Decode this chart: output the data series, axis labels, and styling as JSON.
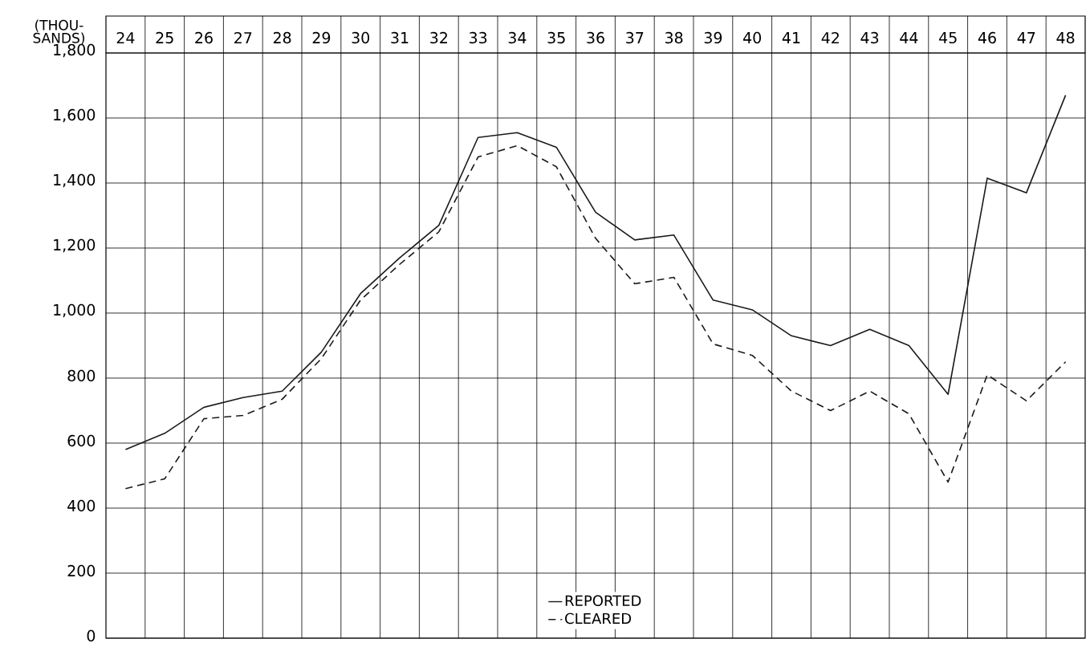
{
  "chart_data": {
    "type": "line",
    "ylabel": "(THOU- SANDS)",
    "categories": [
      "24",
      "25",
      "26",
      "27",
      "28",
      "29",
      "30",
      "31",
      "32",
      "33",
      "34",
      "35",
      "36",
      "37",
      "38",
      "39",
      "40",
      "41",
      "42",
      "43",
      "44",
      "45",
      "46",
      "47",
      "48"
    ],
    "series": [
      {
        "name": "REPORTED",
        "color": "#1a1a1a",
        "line_style": "solid",
        "values": [
          580,
          630,
          710,
          740,
          760,
          880,
          1060,
          1170,
          1270,
          1540,
          1555,
          1510,
          1310,
          1225,
          1240,
          1040,
          1010,
          930,
          900,
          950,
          900,
          750,
          1415,
          1370,
          1670
        ]
      },
      {
        "name": "CLEARED",
        "color": "#1a1a1a",
        "line_style": "dashed",
        "values": [
          460,
          490,
          675,
          685,
          735,
          860,
          1040,
          1150,
          1250,
          1480,
          1515,
          1450,
          1230,
          1090,
          1110,
          905,
          870,
          760,
          700,
          760,
          690,
          480,
          810,
          730,
          850
        ]
      }
    ],
    "ylim": [
      0,
      1800
    ],
    "yticks": [
      0,
      200,
      400,
      600,
      800,
      {
        "value": 1000,
        "label": "1,000"
      },
      {
        "value": 1200,
        "label": "1,200"
      },
      {
        "value": 1400,
        "label": "1,400"
      },
      {
        "value": 1600,
        "label": "1,600"
      },
      {
        "value": 1800,
        "label": "1,800"
      }
    ],
    "grid": true,
    "legend": "bottom",
    "marker": "none"
  }
}
